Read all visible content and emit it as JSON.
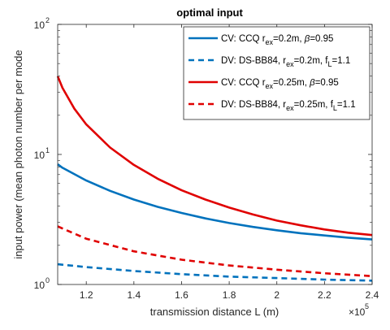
{
  "chart_data": {
    "type": "line",
    "title": "optimal input",
    "xlabel": "transmission distance L (m)",
    "ylabel": "input power (mean photon number per mode",
    "x_scale_note": "×10",
    "x_scale_exp": "5",
    "x_ticks": [
      1.2,
      1.4,
      1.6,
      1.8,
      2.0,
      2.2,
      2.4
    ],
    "x_tick_labels": [
      "1.2",
      "1.4",
      "1.6",
      "1.8",
      "2",
      "2.2",
      "2.4"
    ],
    "y_tick_labels": [
      {
        "base": "10",
        "exp": "0",
        "value": 1
      },
      {
        "base": "10",
        "exp": "1",
        "value": 10
      },
      {
        "base": "10",
        "exp": "2",
        "value": 100
      }
    ],
    "xlim": [
      1.08,
      2.4
    ],
    "ylim": [
      1,
      100
    ],
    "yscale": "log",
    "grid": false,
    "legend_position": "top-right",
    "colors": {
      "blue": "#0072BD",
      "red": "#E00000",
      "axis": "#262626"
    },
    "series": [
      {
        "legend": [
          "CV: CCQ r",
          "ex",
          "=0.2m, ",
          "β",
          "=0.95"
        ],
        "color": "#0072BD",
        "style": "solid",
        "x": [
          1.08,
          1.1,
          1.2,
          1.3,
          1.4,
          1.5,
          1.6,
          1.7,
          1.8,
          1.9,
          2.0,
          2.1,
          2.2,
          2.3,
          2.4
        ],
        "y": [
          8.4,
          7.9,
          6.3,
          5.25,
          4.5,
          3.95,
          3.55,
          3.22,
          2.97,
          2.77,
          2.61,
          2.48,
          2.38,
          2.29,
          2.22
        ]
      },
      {
        "legend": [
          "DV: DS-BB84, r",
          "ex",
          "=0.2m, f",
          "L",
          "=1.1"
        ],
        "color": "#0072BD",
        "style": "dashed",
        "x": [
          1.08,
          1.2,
          1.4,
          1.6,
          1.8,
          2.0,
          2.2,
          2.4
        ],
        "y": [
          1.43,
          1.36,
          1.27,
          1.2,
          1.15,
          1.12,
          1.09,
          1.07
        ]
      },
      {
        "legend": [
          "CV: CCQ r",
          "ex",
          "=0.25m, ",
          "β",
          "=0.95"
        ],
        "color": "#E00000",
        "style": "solid",
        "x": [
          1.08,
          1.1,
          1.15,
          1.2,
          1.3,
          1.4,
          1.5,
          1.6,
          1.7,
          1.8,
          1.9,
          2.0,
          2.1,
          2.2,
          2.3,
          2.4
        ],
        "y": [
          40.0,
          32.5,
          22.5,
          17.0,
          11.3,
          8.3,
          6.5,
          5.3,
          4.5,
          3.9,
          3.45,
          3.1,
          2.85,
          2.65,
          2.5,
          2.4
        ]
      },
      {
        "legend": [
          "DV: DS-BB84, r",
          "ex",
          "=0.25m, f",
          "L",
          "=1.1"
        ],
        "color": "#E00000",
        "style": "dashed",
        "x": [
          1.08,
          1.2,
          1.4,
          1.6,
          1.8,
          2.0,
          2.2,
          2.4
        ],
        "y": [
          2.8,
          2.25,
          1.8,
          1.55,
          1.4,
          1.3,
          1.22,
          1.16
        ]
      }
    ]
  }
}
